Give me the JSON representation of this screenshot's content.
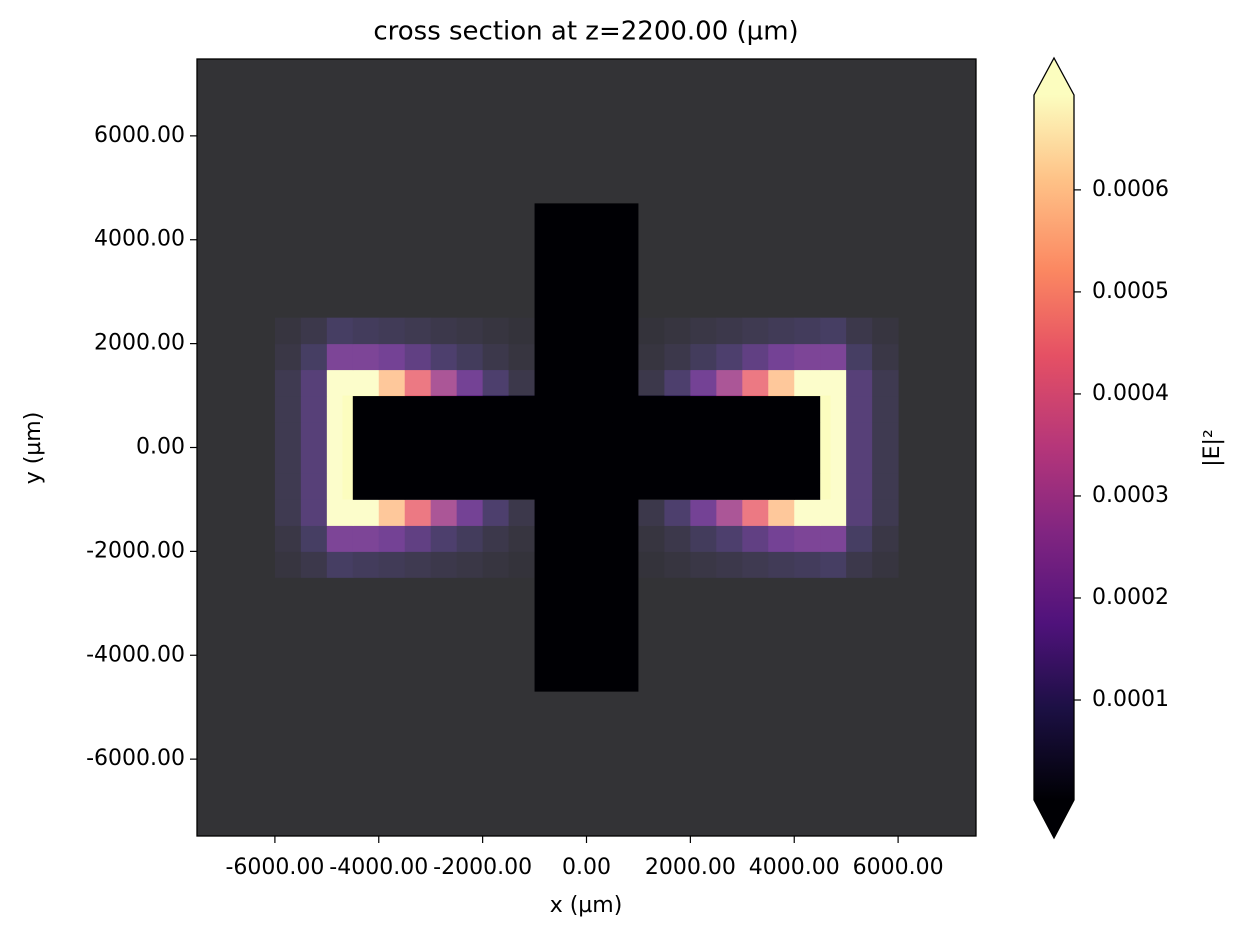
{
  "chart_data": {
    "type": "heatmap",
    "title": "cross section at z=2200.00 (µm)",
    "xlabel": "x (µm)",
    "ylabel": "y (µm)",
    "xlim": [
      -7500,
      7500
    ],
    "ylim": [
      -7480,
      7480
    ],
    "xticks": [
      {
        "value": -6000,
        "label": "-6000.00"
      },
      {
        "value": -4000,
        "label": "-4000.00"
      },
      {
        "value": -2000,
        "label": "-2000.00"
      },
      {
        "value": 0,
        "label": "0.00"
      },
      {
        "value": 2000,
        "label": "2000.00"
      },
      {
        "value": 4000,
        "label": "4000.00"
      },
      {
        "value": 6000,
        "label": "6000.00"
      }
    ],
    "yticks": [
      {
        "value": -6000,
        "label": "-6000.00"
      },
      {
        "value": -4000,
        "label": "-4000.00"
      },
      {
        "value": -2000,
        "label": "-2000.00"
      },
      {
        "value": 0,
        "label": "0.00"
      },
      {
        "value": 2000,
        "label": "2000.00"
      },
      {
        "value": 4000,
        "label": "4000.00"
      },
      {
        "value": 6000,
        "label": "6000.00"
      }
    ],
    "x": [
      -5750,
      -5250,
      -4750,
      -4250,
      -3750,
      -3250,
      -2750,
      -2250,
      -1750,
      -1250,
      -750,
      -250,
      250,
      750,
      1250,
      1750,
      2250,
      2750,
      3250,
      3750,
      4250,
      4750,
      5250,
      5750
    ],
    "y": [
      -2250,
      -1750,
      -1250,
      -750,
      -250,
      250,
      750,
      1250,
      1750,
      2250
    ],
    "cell_size": 500,
    "z": [
      [
        2e-05,
        4e-05,
        8e-05,
        7e-05,
        6e-05,
        5e-05,
        4e-05,
        3e-05,
        2e-05,
        1e-05,
        0,
        0,
        0,
        0,
        1e-05,
        2e-05,
        3e-05,
        4e-05,
        5e-05,
        6e-05,
        7e-05,
        8e-05,
        4e-05,
        2e-05
      ],
      [
        3e-05,
        8e-05,
        0.0002,
        0.0002,
        0.00018,
        0.00014,
        0.0001,
        7e-05,
        4e-05,
        2e-05,
        0,
        0,
        0,
        0,
        2e-05,
        4e-05,
        7e-05,
        0.0001,
        0.00014,
        0.00018,
        0.0002,
        0.0002,
        8e-05,
        3e-05
      ],
      [
        5e-05,
        0.00012,
        0.0007,
        0.0007,
        0.0006,
        0.00045,
        0.0003,
        0.00018,
        0.0001,
        4e-05,
        0,
        0,
        0,
        0,
        4e-05,
        0.0001,
        0.00018,
        0.0003,
        0.00045,
        0.0006,
        0.0007,
        0.0007,
        0.00012,
        5e-05
      ],
      [
        5e-05,
        0.00012,
        0.0007,
        0,
        0,
        0,
        0,
        0,
        0,
        0,
        0,
        0,
        0,
        0,
        0,
        0,
        0,
        0,
        0,
        0,
        0,
        0.0007,
        0.00012,
        5e-05
      ],
      [
        5e-05,
        0.00012,
        0.0007,
        0,
        0,
        0,
        0,
        0,
        0,
        0,
        0,
        0,
        0,
        0,
        0,
        0,
        0,
        0,
        0,
        0,
        0,
        0.0007,
        0.00012,
        5e-05
      ],
      [
        5e-05,
        0.00012,
        0.0007,
        0,
        0,
        0,
        0,
        0,
        0,
        0,
        0,
        0,
        0,
        0,
        0,
        0,
        0,
        0,
        0,
        0,
        0,
        0.0007,
        0.00012,
        5e-05
      ],
      [
        5e-05,
        0.00012,
        0.0007,
        0,
        0,
        0,
        0,
        0,
        0,
        0,
        0,
        0,
        0,
        0,
        0,
        0,
        0,
        0,
        0,
        0,
        0,
        0.0007,
        0.00012,
        5e-05
      ],
      [
        5e-05,
        0.00012,
        0.0007,
        0.0007,
        0.0006,
        0.00045,
        0.0003,
        0.00018,
        0.0001,
        4e-05,
        0,
        0,
        0,
        0,
        4e-05,
        0.0001,
        0.00018,
        0.0003,
        0.00045,
        0.0006,
        0.0007,
        0.0007,
        0.00012,
        5e-05
      ],
      [
        3e-05,
        8e-05,
        0.0002,
        0.0002,
        0.00018,
        0.00014,
        0.0001,
        7e-05,
        4e-05,
        2e-05,
        0,
        0,
        0,
        0,
        2e-05,
        4e-05,
        7e-05,
        0.0001,
        0.00014,
        0.00018,
        0.0002,
        0.0002,
        8e-05,
        3e-05
      ],
      [
        2e-05,
        4e-05,
        8e-05,
        7e-05,
        6e-05,
        5e-05,
        4e-05,
        3e-05,
        2e-05,
        1e-05,
        0,
        0,
        0,
        0,
        1e-05,
        2e-05,
        3e-05,
        4e-05,
        5e-05,
        6e-05,
        7e-05,
        8e-05,
        4e-05,
        2e-05
      ]
    ],
    "structure": {
      "x": [
        -4700,
        -1000,
        -1000,
        1000,
        1000,
        4700,
        4700,
        1000,
        1000,
        -1000,
        -1000,
        -4700
      ],
      "y": [
        -1000,
        -1000,
        -4700,
        -4700,
        -1000,
        -1000,
        1000,
        1000,
        4700,
        4700,
        1000,
        1000
      ],
      "overlay_color": "#ffffff",
      "overlay_opacity": 0.2
    },
    "colorbar": {
      "label": "|E|²",
      "clim": [
        2e-06,
        0.000693
      ],
      "ticks": [
        0.0001,
        0.0002,
        0.0003,
        0.0004,
        0.0005,
        0.0006
      ],
      "extend": "both"
    },
    "colormap": [
      {
        "offset": 0,
        "color": "#000004"
      },
      {
        "offset": 0.13,
        "color": "#1c1044"
      },
      {
        "offset": 0.25,
        "color": "#4f127b"
      },
      {
        "offset": 0.38,
        "color": "#812581"
      },
      {
        "offset": 0.5,
        "color": "#b5367a"
      },
      {
        "offset": 0.63,
        "color": "#e55064"
      },
      {
        "offset": 0.75,
        "color": "#fb8761"
      },
      {
        "offset": 0.88,
        "color": "#fec287"
      },
      {
        "offset": 1,
        "color": "#fcfdbf"
      }
    ]
  }
}
